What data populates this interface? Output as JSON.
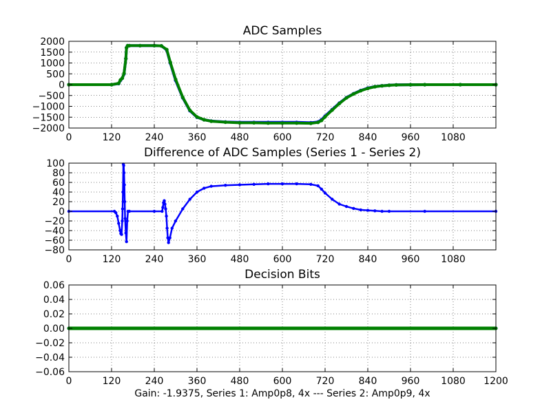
{
  "figure": {
    "caption": "Gain: -1.9375, Series 1: Amp0p8, 4x --- Series 2: Amp0p9, 4x"
  },
  "chart_data": [
    {
      "type": "line",
      "title": "ADC Samples",
      "xlabel": "",
      "ylabel": "",
      "xlim": [
        0,
        1200
      ],
      "ylim": [
        -2000,
        2000
      ],
      "xticks": [
        "0",
        "120",
        "240",
        "360",
        "480",
        "600",
        "720",
        "840",
        "960",
        "1080"
      ],
      "yticks": [
        "2000",
        "1500",
        "1000",
        "500",
        "0",
        "−500",
        "−1000",
        "−1500",
        "−2000"
      ],
      "grid": true,
      "x": [
        0,
        120,
        140,
        145,
        150,
        155,
        160,
        162,
        165,
        170,
        200,
        240,
        260,
        275,
        285,
        300,
        320,
        340,
        360,
        380,
        400,
        440,
        480,
        520,
        560,
        600,
        640,
        680,
        700,
        710,
        720,
        740,
        760,
        780,
        800,
        820,
        840,
        860,
        880,
        900,
        920,
        960,
        1000,
        1100,
        1200
      ],
      "series": [
        {
          "name": "Series 1",
          "color": "#0000ff",
          "marker": "dot",
          "values": [
            0,
            0,
            50,
            200,
            300,
            500,
            1200,
            1700,
            1800,
            1800,
            1800,
            1800,
            1790,
            1600,
            1000,
            200,
            -600,
            -1200,
            -1500,
            -1620,
            -1680,
            -1720,
            -1740,
            -1740,
            -1740,
            -1740,
            -1740,
            -1760,
            -1720,
            -1620,
            -1450,
            -1150,
            -850,
            -600,
            -420,
            -270,
            -160,
            -90,
            -50,
            -25,
            -10,
            -2,
            0,
            0,
            0
          ]
        },
        {
          "name": "Series 2",
          "color": "#008000",
          "marker": "dot",
          "values": [
            0,
            0,
            60,
            220,
            300,
            520,
            1200,
            1700,
            1800,
            1800,
            1800,
            1800,
            1790,
            1620,
            1030,
            240,
            -580,
            -1180,
            -1490,
            -1620,
            -1685,
            -1730,
            -1760,
            -1760,
            -1770,
            -1770,
            -1770,
            -1780,
            -1740,
            -1650,
            -1480,
            -1170,
            -870,
            -610,
            -430,
            -280,
            -170,
            -95,
            -55,
            -28,
            -12,
            -3,
            0,
            0,
            0
          ]
        }
      ]
    },
    {
      "type": "line",
      "title": "Difference of ADC Samples (Series 1 - Series 2)",
      "xlabel": "",
      "ylabel": "",
      "xlim": [
        0,
        1200
      ],
      "ylim": [
        -80,
        100
      ],
      "xticks": [
        "0",
        "120",
        "240",
        "360",
        "480",
        "600",
        "720",
        "840",
        "960",
        "1080"
      ],
      "yticks": [
        "100",
        "80",
        "60",
        "40",
        "20",
        "0",
        "−20",
        "−40",
        "−60",
        "−80"
      ],
      "grid": true,
      "x": [
        0,
        128,
        132,
        136,
        140,
        144,
        146,
        148,
        150,
        151,
        152,
        153,
        154,
        155,
        156,
        157,
        158,
        160,
        162,
        164,
        166,
        170,
        240,
        262,
        264,
        266,
        268,
        270,
        272,
        274,
        276,
        278,
        280,
        284,
        290,
        300,
        320,
        340,
        360,
        380,
        400,
        440,
        480,
        520,
        560,
        600,
        640,
        680,
        700,
        710,
        720,
        740,
        760,
        780,
        800,
        820,
        840,
        860,
        880,
        900,
        1000,
        1200
      ],
      "series": [
        {
          "name": "Series 1 - Series 2",
          "color": "#0000ff",
          "marker": "dot",
          "values": [
            0,
            0,
            -3,
            -10,
            -25,
            -40,
            -46,
            -48,
            -20,
            5,
            40,
            98,
            95,
            80,
            55,
            20,
            -15,
            -45,
            -63,
            -20,
            0,
            0,
            0,
            0,
            8,
            18,
            22,
            15,
            5,
            -10,
            -35,
            -55,
            -65,
            -55,
            -35,
            -20,
            5,
            25,
            40,
            48,
            52,
            54,
            55,
            56,
            57,
            57,
            57,
            56,
            53,
            46,
            38,
            25,
            15,
            10,
            6,
            3,
            2,
            1,
            0,
            0,
            0,
            0
          ]
        }
      ]
    },
    {
      "type": "line",
      "title": "Decision Bits",
      "xlabel": "",
      "ylabel": "",
      "xlim": [
        0,
        1200
      ],
      "ylim": [
        -0.06,
        0.06
      ],
      "xticks": [
        "0",
        "120",
        "240",
        "360",
        "480",
        "600",
        "720",
        "840",
        "960",
        "1080",
        "1200"
      ],
      "yticks": [
        "0.06",
        "0.04",
        "0.02",
        "0.00",
        "−0.02",
        "−0.04",
        "−0.06"
      ],
      "grid": true,
      "x": [
        0,
        1200
      ],
      "series": [
        {
          "name": "Series 1",
          "color": "#0000ff",
          "values": [
            0,
            0
          ]
        },
        {
          "name": "Series 2",
          "color": "#008000",
          "values": [
            0,
            0
          ]
        }
      ]
    }
  ]
}
